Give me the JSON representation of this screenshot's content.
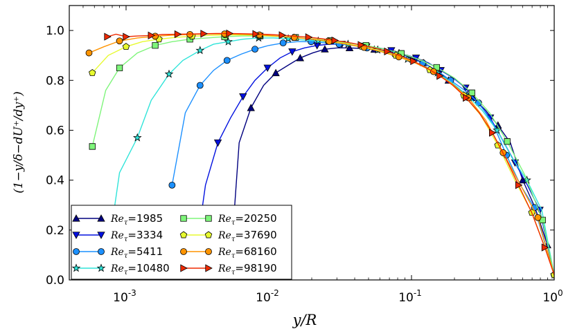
{
  "chart_data": {
    "type": "line",
    "xscale": "log",
    "xlim": [
      0.0004,
      1.0
    ],
    "ylim": [
      0.0,
      1.1
    ],
    "xlabel": "y/R",
    "ylabel": "(1−y/δ−dU⁺/dy⁺)",
    "yticks": [
      0.0,
      0.2,
      0.4,
      0.6,
      0.8,
      1.0
    ],
    "ytick_labels": [
      "0.0",
      "0.2",
      "0.4",
      "0.6",
      "0.8",
      "1.0"
    ],
    "xticks": [
      0.001,
      0.01,
      0.1,
      1.0
    ],
    "xtick_bases": [
      "10",
      "10",
      "10",
      "10"
    ],
    "xtick_exponents": [
      "-3",
      "-2",
      "-1",
      "0"
    ],
    "legend_location": "lower-left",
    "legend": {
      "prefix": "Re",
      "subscript": "τ",
      "equals": "="
    },
    "series": [
      {
        "name": "1985",
        "color": "#00007f",
        "marker": "triangle-up",
        "x": [
          0.0053,
          0.0062,
          0.0075,
          0.0092,
          0.0112,
          0.0136,
          0.0166,
          0.0203,
          0.0247,
          0.0302,
          0.0368,
          0.045,
          0.0549,
          0.067,
          0.0818,
          0.0999,
          0.122,
          0.1488,
          0.1817,
          0.2218,
          0.2708,
          0.3306,
          0.4035,
          0.4926,
          0.6014,
          0.7342,
          0.8963,
          1.0
        ],
        "y": [
          0.0,
          0.55,
          0.69,
          0.78,
          0.83,
          0.86,
          0.89,
          0.91,
          0.925,
          0.93,
          0.93,
          0.928,
          0.924,
          0.92,
          0.91,
          0.89,
          0.87,
          0.84,
          0.8,
          0.76,
          0.73,
          0.68,
          0.62,
          0.55,
          0.4,
          0.29,
          0.14,
          0.02
        ]
      },
      {
        "name": "3334",
        "color": "#0010df",
        "marker": "triangle-down",
        "x": [
          0.0029,
          0.0036,
          0.0044,
          0.0054,
          0.0066,
          0.008,
          0.0098,
          0.012,
          0.0146,
          0.0178,
          0.0218,
          0.0266,
          0.0325,
          0.0397,
          0.0484,
          0.0591,
          0.0722,
          0.0881,
          0.1076,
          0.1314,
          0.1604,
          0.1958,
          0.2391,
          0.2919,
          0.3564,
          0.4351,
          0.5312,
          0.6486,
          0.7919,
          1.0
        ],
        "y": [
          0.0,
          0.38,
          0.55,
          0.65,
          0.735,
          0.8,
          0.85,
          0.89,
          0.915,
          0.93,
          0.94,
          0.945,
          0.945,
          0.94,
          0.935,
          0.93,
          0.92,
          0.905,
          0.89,
          0.87,
          0.84,
          0.81,
          0.77,
          0.71,
          0.65,
          0.56,
          0.47,
          0.38,
          0.28,
          0.02
        ]
      },
      {
        "name": "5411",
        "color": "#1c90ff",
        "marker": "circle",
        "x": [
          0.0021,
          0.0026,
          0.0033,
          0.0041,
          0.0051,
          0.0064,
          0.008,
          0.01,
          0.0126,
          0.0158,
          0.0198,
          0.0248,
          0.0311,
          0.0389,
          0.0488,
          0.0611,
          0.0765,
          0.0958,
          0.12,
          0.1503,
          0.1882,
          0.2357,
          0.2952,
          0.3697,
          0.463,
          0.5799,
          0.7263,
          0.9096,
          1.0
        ],
        "y": [
          0.38,
          0.67,
          0.78,
          0.84,
          0.88,
          0.905,
          0.925,
          0.94,
          0.95,
          0.955,
          0.955,
          0.95,
          0.945,
          0.94,
          0.93,
          0.92,
          0.905,
          0.89,
          0.87,
          0.84,
          0.8,
          0.76,
          0.71,
          0.63,
          0.5,
          0.38,
          0.29,
          0.1,
          0.02
        ]
      },
      {
        "name": "10480",
        "color": "#2ee4d9",
        "marker": "star",
        "x": [
          0.0007,
          0.0009,
          0.0012,
          0.0015,
          0.002,
          0.0025,
          0.0033,
          0.0041,
          0.0052,
          0.0066,
          0.0085,
          0.0108,
          0.0137,
          0.0174,
          0.0222,
          0.0282,
          0.0359,
          0.0456,
          0.058,
          0.0738,
          0.0939,
          0.1194,
          0.1519,
          0.1932,
          0.2457,
          0.3125,
          0.3975,
          0.5056,
          0.6431,
          0.818,
          1.0
        ],
        "y": [
          0.0,
          0.43,
          0.57,
          0.72,
          0.825,
          0.88,
          0.92,
          0.945,
          0.955,
          0.965,
          0.97,
          0.97,
          0.967,
          0.962,
          0.958,
          0.952,
          0.945,
          0.935,
          0.922,
          0.905,
          0.885,
          0.86,
          0.83,
          0.79,
          0.74,
          0.68,
          0.6,
          0.49,
          0.4,
          0.28,
          0.02
        ]
      },
      {
        "name": "20250",
        "color": "#7ef57a",
        "marker": "square",
        "x": [
          0.00058,
          0.00072,
          0.0009,
          0.0012,
          0.0016,
          0.0021,
          0.0028,
          0.0037,
          0.0049,
          0.0065,
          0.0087,
          0.0116,
          0.0154,
          0.0204,
          0.0272,
          0.0361,
          0.048,
          0.0638,
          0.0848,
          0.1128,
          0.15,
          0.1994,
          0.265,
          0.3524,
          0.4685,
          0.6229,
          0.8282,
          1.0
        ],
        "y": [
          0.535,
          0.76,
          0.85,
          0.91,
          0.94,
          0.955,
          0.965,
          0.97,
          0.975,
          0.978,
          0.978,
          0.976,
          0.972,
          0.966,
          0.959,
          0.95,
          0.94,
          0.926,
          0.908,
          0.884,
          0.852,
          0.81,
          0.75,
          0.67,
          0.555,
          0.42,
          0.24,
          0.02
        ]
      },
      {
        "name": "37690",
        "color": "#e7fa2f",
        "marker": "pentagon",
        "x": [
          0.00058,
          0.00075,
          0.001,
          0.0013,
          0.0017,
          0.0022,
          0.0029,
          0.0038,
          0.005,
          0.0066,
          0.0087,
          0.0114,
          0.015,
          0.0197,
          0.026,
          0.0341,
          0.0449,
          0.059,
          0.0777,
          0.1022,
          0.1344,
          0.1768,
          0.2326,
          0.306,
          0.4026,
          0.5296,
          0.6968,
          0.9166,
          1.0
        ],
        "y": [
          0.83,
          0.9,
          0.935,
          0.955,
          0.965,
          0.972,
          0.977,
          0.98,
          0.982,
          0.982,
          0.98,
          0.977,
          0.972,
          0.966,
          0.958,
          0.948,
          0.936,
          0.92,
          0.9,
          0.875,
          0.842,
          0.8,
          0.74,
          0.66,
          0.54,
          0.4,
          0.27,
          0.09,
          0.02
        ]
      },
      {
        "name": "68160",
        "color": "#ff9400",
        "marker": "circle",
        "x": [
          0.00055,
          0.0007,
          0.0009,
          0.0012,
          0.0016,
          0.0021,
          0.0028,
          0.0037,
          0.0049,
          0.0065,
          0.0086,
          0.0114,
          0.0151,
          0.02,
          0.0265,
          0.0351,
          0.0465,
          0.0615,
          0.0815,
          0.1079,
          0.1428,
          0.1891,
          0.2503,
          0.3313,
          0.4386,
          0.5805,
          0.7684,
          1.0
        ],
        "y": [
          0.91,
          0.935,
          0.958,
          0.97,
          0.977,
          0.981,
          0.984,
          0.986,
          0.986,
          0.985,
          0.982,
          0.978,
          0.972,
          0.965,
          0.956,
          0.945,
          0.932,
          0.915,
          0.894,
          0.868,
          0.835,
          0.79,
          0.73,
          0.64,
          0.51,
          0.38,
          0.25,
          0.02
        ]
      },
      {
        "name": "98190",
        "color": "#ef2a00",
        "marker": "triangle-right",
        "x": [
          0.00074,
          0.00085,
          0.001,
          0.0012,
          0.0015,
          0.0018,
          0.0023,
          0.0028,
          0.0035,
          0.0043,
          0.0053,
          0.0066,
          0.0081,
          0.0101,
          0.0124,
          0.0154,
          0.019,
          0.0235,
          0.029,
          0.0359,
          0.0443,
          0.0548,
          0.0677,
          0.0837,
          0.1034,
          0.1278,
          0.1579,
          0.1952,
          0.2412,
          0.2981,
          0.3684,
          0.4553,
          0.5626,
          0.6953,
          0.8592,
          1.0
        ],
        "y": [
          0.975,
          0.985,
          0.975,
          0.978,
          0.98,
          0.984,
          0.985,
          0.986,
          0.987,
          0.988,
          0.988,
          0.987,
          0.986,
          0.984,
          0.981,
          0.977,
          0.973,
          0.967,
          0.96,
          0.952,
          0.942,
          0.93,
          0.916,
          0.898,
          0.877,
          0.85,
          0.818,
          0.78,
          0.73,
          0.67,
          0.59,
          0.49,
          0.38,
          0.27,
          0.13,
          0.02
        ]
      }
    ]
  }
}
